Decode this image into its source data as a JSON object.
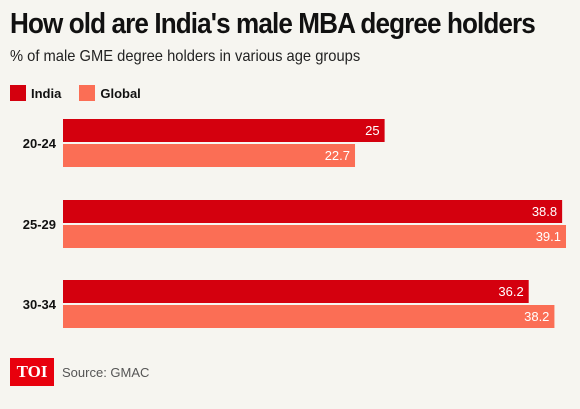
{
  "title": "How old are India's male MBA degree holders",
  "subtitle": "% of male GME degree holders in various age groups",
  "colors": {
    "India": "#d4000e",
    "Global": "#fb6e55"
  },
  "source": "Source: GMAC",
  "logo": "TOI",
  "chart_data": {
    "type": "bar",
    "orientation": "horizontal",
    "categories": [
      "20-24",
      "25-29",
      "30-34"
    ],
    "series": [
      {
        "name": "India",
        "values": [
          25,
          38.8,
          36.2
        ]
      },
      {
        "name": "Global",
        "values": [
          22.7,
          39.1,
          38.2
        ]
      }
    ],
    "xlim": [
      0,
      39.1
    ],
    "legend": "top-left",
    "grid": false,
    "data_labels": true
  }
}
